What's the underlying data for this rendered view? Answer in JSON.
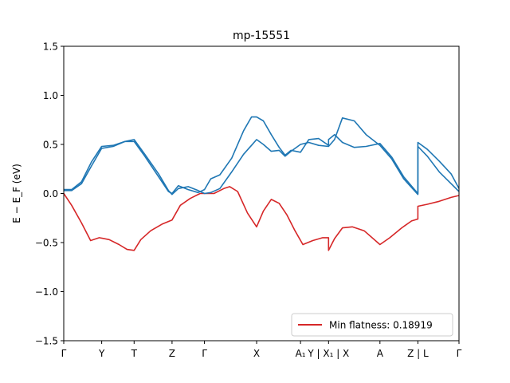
{
  "chart_data": {
    "type": "line",
    "title": "mp-15551",
    "ylabel": "E − E_F (eV)",
    "ylim": [
      -1.5,
      1.5
    ],
    "yticks": [
      {
        "value": 1.5,
        "label": "1.5"
      },
      {
        "value": 1.0,
        "label": "1.0"
      },
      {
        "value": 0.5,
        "label": "0.5"
      },
      {
        "value": 0.0,
        "label": "0.0"
      },
      {
        "value": -0.5,
        "label": "−0.5"
      },
      {
        "value": -1.0,
        "label": "−1.0"
      },
      {
        "value": -1.5,
        "label": "−1.5"
      }
    ],
    "xlim": [
      0,
      10
    ],
    "xticks": [
      {
        "pos": 0.0,
        "label": "Γ"
      },
      {
        "pos": 0.96,
        "label": "Y"
      },
      {
        "pos": 1.78,
        "label": "T"
      },
      {
        "pos": 2.74,
        "label": "Z"
      },
      {
        "pos": 3.56,
        "label": "Γ"
      },
      {
        "pos": 4.88,
        "label": "X"
      },
      {
        "pos": 5.99,
        "label": "A₁"
      },
      {
        "pos": 6.7,
        "label": "Y | X₁ | X"
      },
      {
        "pos": 8.0,
        "label": "A"
      },
      {
        "pos": 8.96,
        "label": "Z | L"
      },
      {
        "pos": 10.0,
        "label": "Γ"
      }
    ],
    "grid": false,
    "legend": {
      "position": "bottom-right",
      "entries": [
        "Min flatness: 0.18919"
      ]
    },
    "colors": {
      "highlight": "#d62728",
      "bands": "#1f77b4"
    },
    "series": [
      {
        "name": "Min flatness: 0.18919",
        "color": "#d62728",
        "x": [
          0,
          0.2,
          0.45,
          0.68,
          0.9,
          1.15,
          1.4,
          1.6,
          1.78,
          1.95,
          2.2,
          2.5,
          2.74,
          2.95,
          3.2,
          3.45,
          3.56,
          3.8,
          4.05,
          4.2,
          4.4,
          4.65,
          4.88,
          5.05,
          5.25,
          5.45,
          5.65,
          5.85,
          6.05,
          6.3,
          6.55,
          6.7,
          6.7,
          6.85,
          7.05,
          7.3,
          7.6,
          8.0,
          8.25,
          8.55,
          8.8,
          8.96,
          8.96,
          9.2,
          9.5,
          9.8,
          10.0
        ],
        "y": [
          0.0,
          -0.12,
          -0.3,
          -0.48,
          -0.45,
          -0.47,
          -0.52,
          -0.57,
          -0.58,
          -0.47,
          -0.38,
          -0.31,
          -0.27,
          -0.12,
          -0.05,
          0.0,
          0.0,
          0.0,
          0.05,
          0.07,
          0.02,
          -0.2,
          -0.34,
          -0.18,
          -0.06,
          -0.1,
          -0.22,
          -0.38,
          -0.52,
          -0.48,
          -0.45,
          -0.45,
          -0.58,
          -0.46,
          -0.35,
          -0.34,
          -0.38,
          -0.52,
          -0.45,
          -0.35,
          -0.28,
          -0.26,
          -0.13,
          -0.11,
          -0.08,
          -0.04,
          -0.02
        ]
      },
      {
        "name": "",
        "color": "#1f77b4",
        "x": [
          0,
          0.2,
          0.45,
          0.7,
          0.96,
          1.25,
          1.55,
          1.78,
          2.05,
          2.4,
          2.65,
          2.74,
          2.9,
          3.15,
          3.4,
          3.56,
          3.72,
          3.95,
          4.25,
          4.55,
          4.75,
          4.88,
          5.05,
          5.25,
          5.45,
          5.6,
          5.75,
          5.99,
          6.2,
          6.45,
          6.7,
          6.7,
          6.85,
          7.05,
          7.35,
          7.65,
          8.0,
          8.3,
          8.6,
          8.96,
          8.96,
          9.2,
          9.5,
          9.8,
          10.0
        ],
        "y": [
          0.04,
          0.04,
          0.12,
          0.32,
          0.48,
          0.49,
          0.53,
          0.53,
          0.38,
          0.17,
          0.02,
          0.0,
          0.08,
          0.04,
          0.01,
          0.04,
          0.15,
          0.19,
          0.36,
          0.64,
          0.78,
          0.78,
          0.74,
          0.6,
          0.47,
          0.39,
          0.44,
          0.42,
          0.55,
          0.56,
          0.49,
          0.55,
          0.6,
          0.52,
          0.47,
          0.48,
          0.51,
          0.37,
          0.17,
          0.0,
          0.52,
          0.45,
          0.33,
          0.2,
          0.05
        ]
      },
      {
        "name": "",
        "color": "#1f77b4",
        "x": [
          0,
          0.2,
          0.45,
          0.7,
          0.96,
          1.25,
          1.55,
          1.78,
          2.05,
          2.4,
          2.65,
          2.74,
          2.9,
          3.15,
          3.4,
          3.56,
          3.72,
          3.95,
          4.25,
          4.55,
          4.75,
          4.88,
          5.05,
          5.25,
          5.45,
          5.6,
          5.75,
          5.99,
          6.2,
          6.45,
          6.7,
          6.7,
          6.85,
          7.05,
          7.35,
          7.65,
          8.0,
          8.3,
          8.6,
          8.96,
          8.96,
          9.2,
          9.5,
          9.8,
          10.0
        ],
        "y": [
          0.03,
          0.03,
          0.1,
          0.28,
          0.46,
          0.48,
          0.53,
          0.55,
          0.4,
          0.2,
          0.03,
          -0.01,
          0.05,
          0.07,
          0.03,
          0.0,
          0.01,
          0.05,
          0.22,
          0.4,
          0.49,
          0.55,
          0.5,
          0.43,
          0.44,
          0.38,
          0.43,
          0.5,
          0.52,
          0.49,
          0.48,
          0.48,
          0.55,
          0.77,
          0.74,
          0.6,
          0.49,
          0.35,
          0.15,
          -0.01,
          0.48,
          0.38,
          0.22,
          0.1,
          0.02
        ]
      }
    ]
  }
}
